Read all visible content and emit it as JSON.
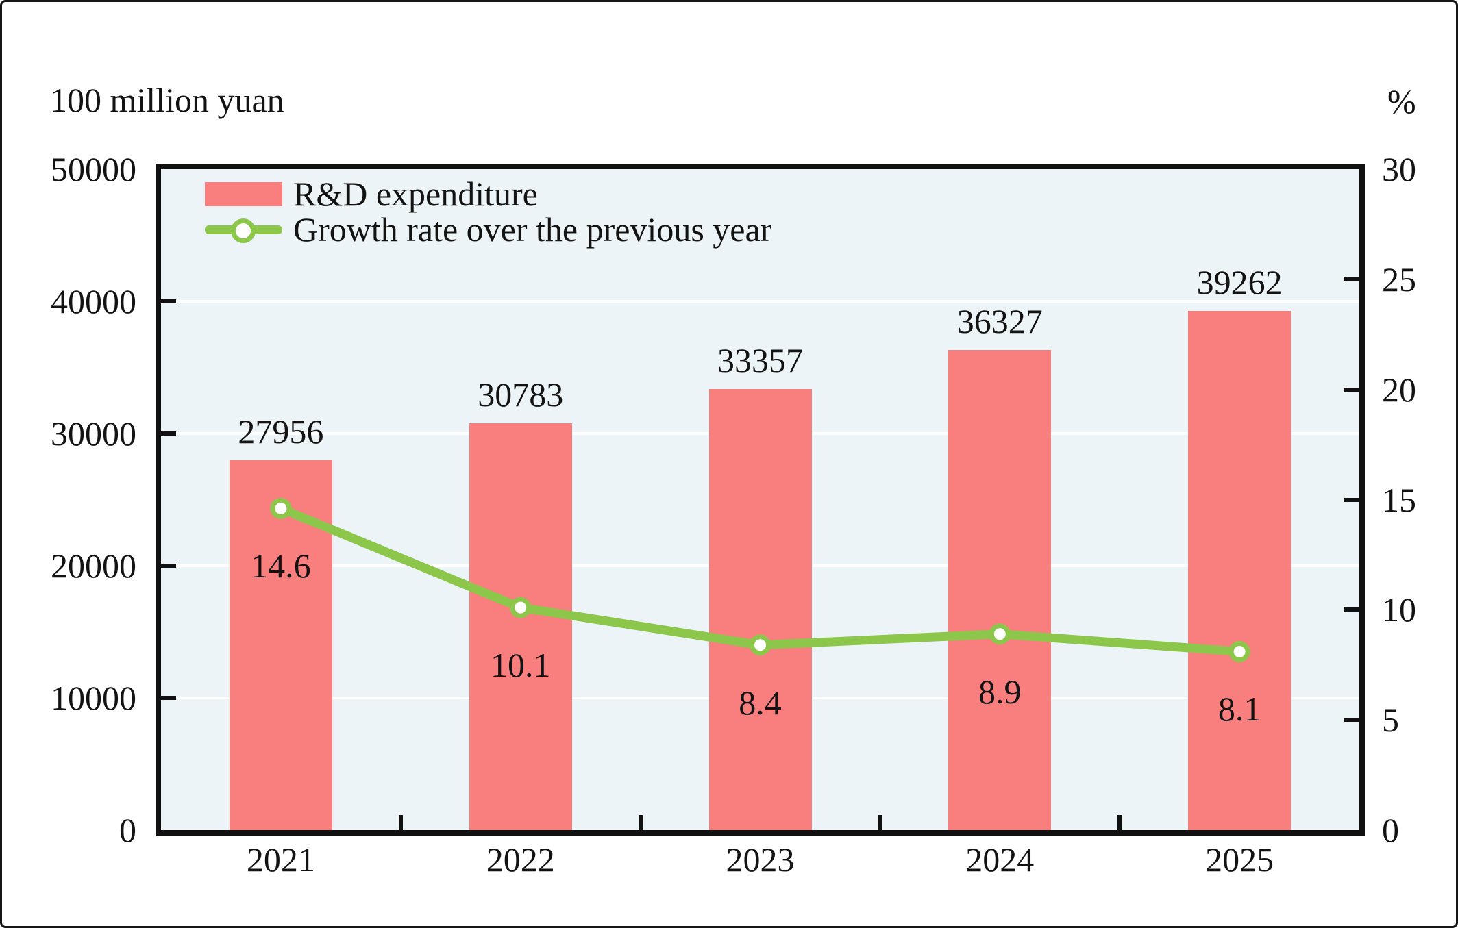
{
  "chart_data": {
    "type": "bar+line-combo",
    "categories": [
      "2021",
      "2022",
      "2023",
      "2024",
      "2025"
    ],
    "series": [
      {
        "name": "R&D expenditure",
        "type": "bar",
        "axis": "left",
        "values": [
          27956,
          30783,
          33357,
          36327,
          39262
        ],
        "labels": [
          "27956",
          "30783",
          "33357",
          "36327",
          "39262"
        ],
        "color": "#f97f7f"
      },
      {
        "name": "Growth rate over the previous year",
        "type": "line",
        "axis": "right",
        "values": [
          14.6,
          10.1,
          8.4,
          8.9,
          8.1
        ],
        "labels": [
          "14.6",
          "10.1",
          "8.4",
          "8.9",
          "8.1"
        ],
        "color": "#8cc64a",
        "marker": "white-circle-green-ring"
      }
    ],
    "left_axis": {
      "title": "100 million yuan",
      "min": 0,
      "max": 50000,
      "tick_step": 10000,
      "ticks": [
        0,
        10000,
        20000,
        30000,
        40000,
        50000
      ],
      "tick_labels": [
        "0",
        "10000",
        "20000",
        "30000",
        "40000",
        "50000"
      ]
    },
    "right_axis": {
      "title": "%",
      "min": 0,
      "max": 30,
      "tick_step": 5,
      "ticks": [
        0,
        5,
        10,
        15,
        20,
        25,
        30
      ],
      "tick_labels": [
        "0",
        "5",
        "10",
        "15",
        "20",
        "25",
        "30"
      ]
    },
    "grid": {
      "horizontal_at_left_ticks": true,
      "color": "#ffffff"
    },
    "legend_position": "top-left-inside",
    "plot_background": "#edf4f7",
    "plot_border_color": "#111111",
    "text_color": "#131313"
  }
}
